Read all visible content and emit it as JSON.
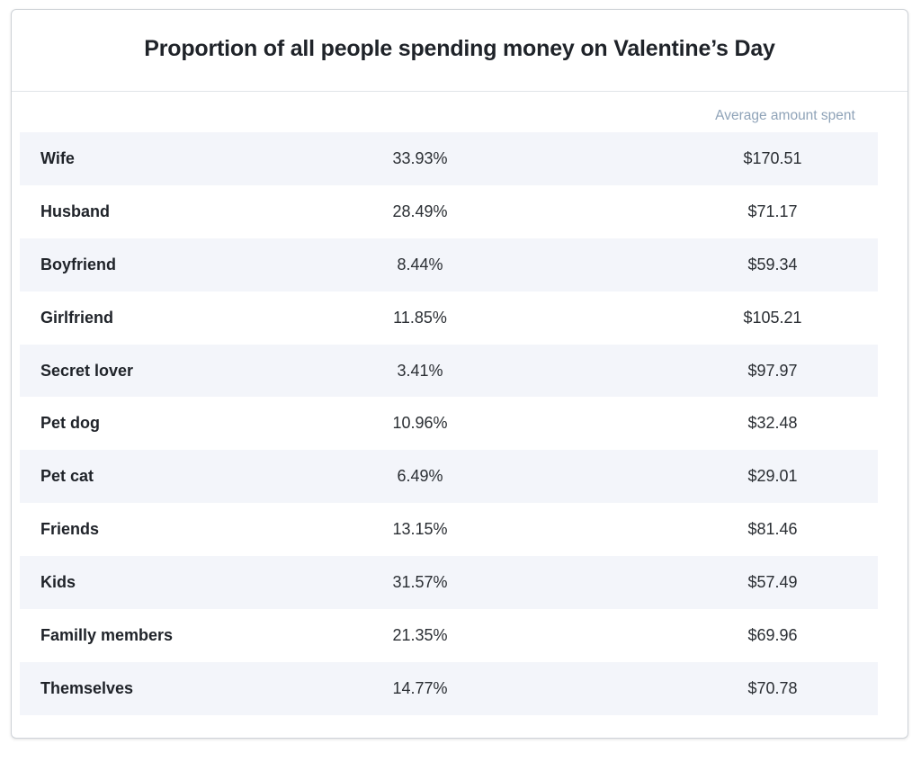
{
  "chart_data": {
    "type": "table",
    "title": "Proportion of all people spending money on Valentine’s Day",
    "columns": [
      "",
      "",
      "Average amount spent"
    ],
    "rows": [
      {
        "label": "Wife",
        "proportion": "33.93%",
        "amount": "$170.51"
      },
      {
        "label": "Husband",
        "proportion": "28.49%",
        "amount": "$71.17"
      },
      {
        "label": "Boyfriend",
        "proportion": "8.44%",
        "amount": "$59.34"
      },
      {
        "label": "Girlfriend",
        "proportion": "11.85%",
        "amount": "$105.21"
      },
      {
        "label": "Secret lover",
        "proportion": "3.41%",
        "amount": "$97.97"
      },
      {
        "label": "Pet dog",
        "proportion": "10.96%",
        "amount": "$32.48"
      },
      {
        "label": "Pet cat",
        "proportion": "6.49%",
        "amount": "$29.01"
      },
      {
        "label": "Friends",
        "proportion": "13.15%",
        "amount": "$81.46"
      },
      {
        "label": "Kids",
        "proportion": "31.57%",
        "amount": "$57.49"
      },
      {
        "label": "Familly members",
        "proportion": "21.35%",
        "amount": "$69.96"
      },
      {
        "label": "Themselves",
        "proportion": "14.77%",
        "amount": "$70.78"
      }
    ]
  },
  "colors": {
    "row_shade": "#f3f5fa",
    "header_text": "#8fa3b8",
    "border": "#cfd3d8"
  }
}
